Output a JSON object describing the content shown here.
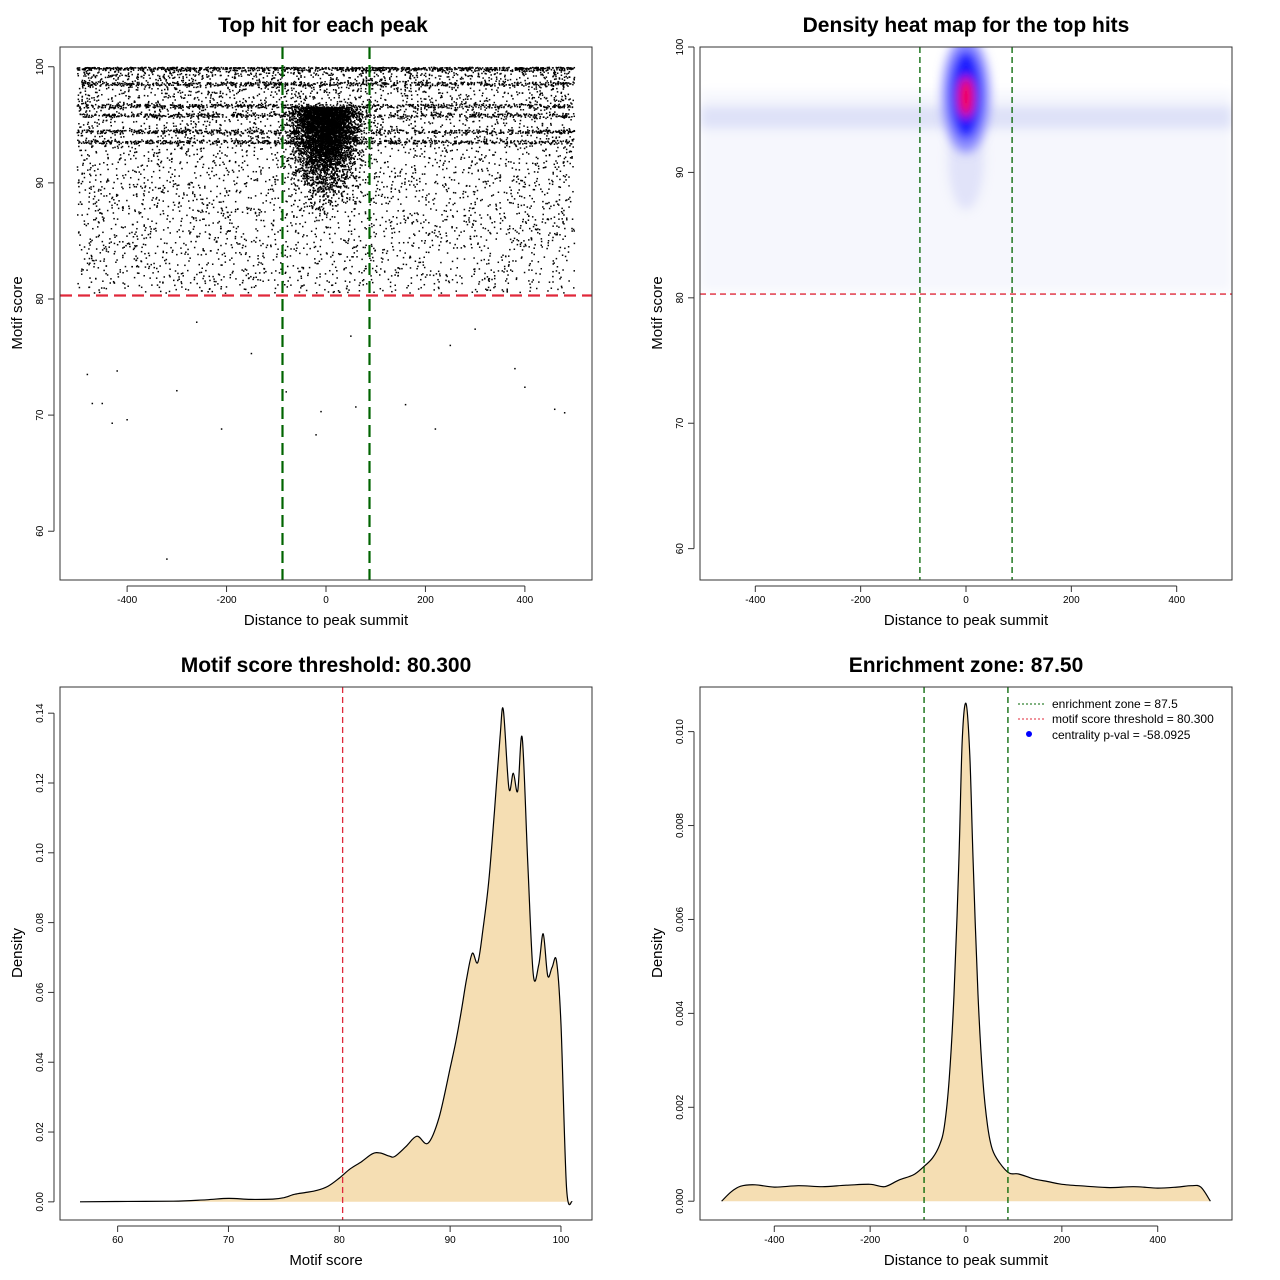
{
  "chart_data": [
    {
      "id": "scatter",
      "type": "scatter",
      "title": "Top hit for each peak",
      "xlabel": "Distance to peak summit",
      "ylabel": "Motif score",
      "xlim": [
        -535,
        535
      ],
      "ylim": [
        55.8,
        101.7
      ],
      "xticks": [
        -400,
        -200,
        0,
        200,
        400
      ],
      "yticks": [
        60,
        70,
        80,
        90,
        100
      ],
      "point_color": "#000000",
      "threshold_y": 80.3,
      "threshold_color": "#e0283a",
      "zone_x": [
        -87.5,
        87.5
      ],
      "zone_color": "#006400",
      "x_range_of_hits": [
        -500,
        500
      ],
      "sampled_points": [
        {
          "x": -320,
          "y": 57.6
        },
        {
          "x": -20,
          "y": 68.3
        },
        {
          "x": -210,
          "y": 68.8
        },
        {
          "x": 220,
          "y": 68.8
        },
        {
          "x": -400,
          "y": 69.6
        },
        {
          "x": -430,
          "y": 69.3
        },
        {
          "x": 480,
          "y": 70.2
        },
        {
          "x": 460,
          "y": 70.5
        },
        {
          "x": -470,
          "y": 71.0
        },
        {
          "x": -450,
          "y": 71.0
        },
        {
          "x": 160,
          "y": 70.9
        },
        {
          "x": 60,
          "y": 70.7
        },
        {
          "x": -10,
          "y": 70.3
        },
        {
          "x": -80,
          "y": 72.0
        },
        {
          "x": -300,
          "y": 72.1
        },
        {
          "x": 400,
          "y": 72.4
        },
        {
          "x": -480,
          "y": 73.5
        },
        {
          "x": -420,
          "y": 73.8
        },
        {
          "x": 380,
          "y": 74.0
        },
        {
          "x": 250,
          "y": 76.0
        },
        {
          "x": -150,
          "y": 75.3
        },
        {
          "x": 50,
          "y": 76.8
        },
        {
          "x": 300,
          "y": 77.4
        },
        {
          "x": -260,
          "y": 78.0
        }
      ]
    },
    {
      "id": "heatmap",
      "type": "heatmap",
      "title": "Density heat map for the top hits",
      "xlabel": "Distance to peak summit",
      "ylabel": "Motif score",
      "xlim": [
        -505,
        505
      ],
      "ylim": [
        57.5,
        100
      ],
      "xticks": [
        -400,
        -200,
        0,
        200,
        400
      ],
      "yticks": [
        60,
        70,
        80,
        90,
        100
      ],
      "color_scale": [
        "#ffffff",
        "#0000ff",
        "#ff0000"
      ],
      "peak_location": {
        "x": 0,
        "y": 96.0
      },
      "threshold_y": 80.3,
      "threshold_color": "#e0283a",
      "zone_x": [
        -87.5,
        87.5
      ],
      "zone_color": "#006400"
    },
    {
      "id": "score-density",
      "type": "area",
      "title": "Motif score threshold: 80.300",
      "xlabel": "Motif score",
      "ylabel": "Density",
      "xlim": [
        54.8,
        102.8
      ],
      "ylim": [
        -0.0052,
        0.1475
      ],
      "xticks": [
        60,
        70,
        80,
        90,
        100
      ],
      "yticks": [
        0.0,
        0.02,
        0.04,
        0.06,
        0.08,
        0.1,
        0.12,
        0.14
      ],
      "ytick_labels": [
        "0.00",
        "0.02",
        "0.04",
        "0.06",
        "0.08",
        "0.10",
        "0.12",
        "0.14"
      ],
      "fill_color": "#f5deb3",
      "threshold_x": 80.3,
      "threshold_color": "#e0283a",
      "x": [
        56.6,
        60,
        65,
        68,
        70,
        72,
        74,
        75,
        76,
        77,
        78,
        79,
        80,
        81,
        82,
        83,
        83.7,
        84.5,
        85,
        86,
        87,
        88,
        89,
        90,
        90.5,
        91,
        91.5,
        92,
        92.5,
        93,
        93.5,
        94,
        94.5,
        94.8,
        95.3,
        95.7,
        96.1,
        96.5,
        97,
        97.5,
        98,
        98.4,
        98.8,
        99.2,
        99.6,
        100,
        100.5,
        101
      ],
      "y": [
        0.0,
        0.0001,
        0.0002,
        0.0006,
        0.001,
        0.0007,
        0.0008,
        0.0012,
        0.0022,
        0.0027,
        0.0033,
        0.0045,
        0.0068,
        0.0095,
        0.0115,
        0.0138,
        0.014,
        0.0131,
        0.013,
        0.0158,
        0.0188,
        0.0168,
        0.0242,
        0.0383,
        0.0457,
        0.0545,
        0.0642,
        0.0712,
        0.0686,
        0.079,
        0.0923,
        0.112,
        0.133,
        0.141,
        0.1185,
        0.1228,
        0.1177,
        0.133,
        0.0975,
        0.0651,
        0.068,
        0.0768,
        0.0648,
        0.0672,
        0.069,
        0.0508,
        0.0042,
        0.0
      ]
    },
    {
      "id": "distance-density",
      "type": "area",
      "title": "Enrichment zone: 87.50",
      "xlabel": "Distance to peak summit",
      "ylabel": "Density",
      "xlim": [
        -555,
        555
      ],
      "ylim": [
        -0.0004,
        0.01095
      ],
      "xticks": [
        -400,
        -200,
        0,
        200,
        400
      ],
      "yticks": [
        0.0,
        0.002,
        0.004,
        0.006,
        0.008,
        0.01
      ],
      "ytick_labels": [
        "0.000",
        "0.002",
        "0.004",
        "0.006",
        "0.008",
        "0.010"
      ],
      "fill_color": "#f5deb3",
      "zone_x": [
        -87.5,
        87.5
      ],
      "zone_color": "#006400",
      "x": [
        -510,
        -490,
        -470,
        -440,
        -400,
        -350,
        -300,
        -250,
        -200,
        -170,
        -140,
        -110,
        -90,
        -70,
        -55,
        -45,
        -35,
        -25,
        -15,
        -8,
        0,
        8,
        15,
        25,
        35,
        45,
        55,
        70,
        90,
        110,
        140,
        170,
        200,
        250,
        300,
        350,
        400,
        440,
        470,
        490,
        510
      ],
      "y": [
        0.0,
        0.0002,
        0.00032,
        0.00035,
        0.0003,
        0.00033,
        0.00031,
        0.00034,
        0.00036,
        0.00031,
        0.00045,
        0.00056,
        0.00072,
        0.00092,
        0.0012,
        0.0016,
        0.0026,
        0.0044,
        0.0072,
        0.0098,
        0.0106,
        0.0095,
        0.0072,
        0.0044,
        0.0026,
        0.0016,
        0.0011,
        0.00082,
        0.0006,
        0.00058,
        0.00048,
        0.00042,
        0.00036,
        0.00032,
        0.00029,
        0.00031,
        0.00028,
        0.0003,
        0.00033,
        0.0003,
        0.0
      ]
    }
  ],
  "legend": {
    "items": [
      {
        "label": "enrichment zone = 87.5",
        "color": "#006400",
        "kind": "dotted-line"
      },
      {
        "label": "motif score threshold = 80.300",
        "color": "#e0283a",
        "kind": "dotted-line"
      },
      {
        "label": "centrality p-val = -58.0925",
        "color": "#0000ff",
        "kind": "point"
      }
    ]
  }
}
